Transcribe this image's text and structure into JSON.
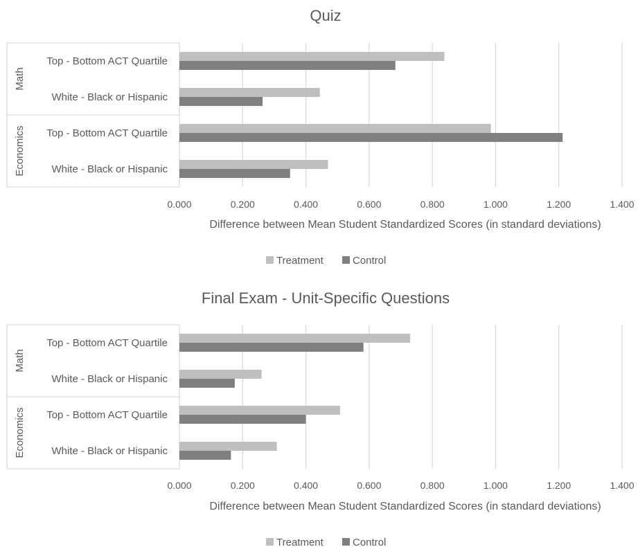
{
  "colors": {
    "treatment": "#bfbfbf",
    "control": "#7f7f7f",
    "grid": "#d9d9d9",
    "text": "#595959"
  },
  "chart_data": [
    {
      "type": "bar",
      "orientation": "horizontal",
      "title": "Quiz",
      "xlabel": "Difference between Mean Student Standardized Scores (in standard deviations)",
      "ylabel": "",
      "xlim": [
        0,
        1.4
      ],
      "x_ticks": [
        "0.000",
        "0.200",
        "0.400",
        "0.600",
        "0.800",
        "1.000",
        "1.200",
        "1.400"
      ],
      "grid": true,
      "legend_position": "bottom",
      "groups": [
        {
          "name": "Math",
          "categories": [
            "Top - Bottom ACT Quartile",
            "White - Black or Hispanic"
          ]
        },
        {
          "name": "Economics",
          "categories": [
            "Top - Bottom ACT Quartile",
            "White - Black or Hispanic"
          ]
        }
      ],
      "series": [
        {
          "name": "Treatment",
          "values": [
            0.838,
            0.444,
            0.985,
            0.47
          ]
        },
        {
          "name": "Control",
          "values": [
            0.683,
            0.263,
            1.212,
            0.35
          ]
        }
      ]
    },
    {
      "type": "bar",
      "orientation": "horizontal",
      "title": "Final Exam - Unit-Specific Questions",
      "xlabel": "Difference between Mean Student Standardized Scores (in standard deviations)",
      "ylabel": "",
      "xlim": [
        0,
        1.4
      ],
      "x_ticks": [
        "0.000",
        "0.200",
        "0.400",
        "0.600",
        "0.800",
        "1.000",
        "1.200",
        "1.400"
      ],
      "grid": true,
      "legend_position": "bottom",
      "groups": [
        {
          "name": "Math",
          "categories": [
            "Top - Bottom ACT Quartile",
            "White - Black or Hispanic"
          ]
        },
        {
          "name": "Economics",
          "categories": [
            "Top - Bottom ACT Quartile",
            "White - Black or Hispanic"
          ]
        }
      ],
      "series": [
        {
          "name": "Treatment",
          "values": [
            0.73,
            0.26,
            0.508,
            0.308
          ]
        },
        {
          "name": "Control",
          "values": [
            0.582,
            0.175,
            0.4,
            0.163
          ]
        }
      ]
    }
  ]
}
